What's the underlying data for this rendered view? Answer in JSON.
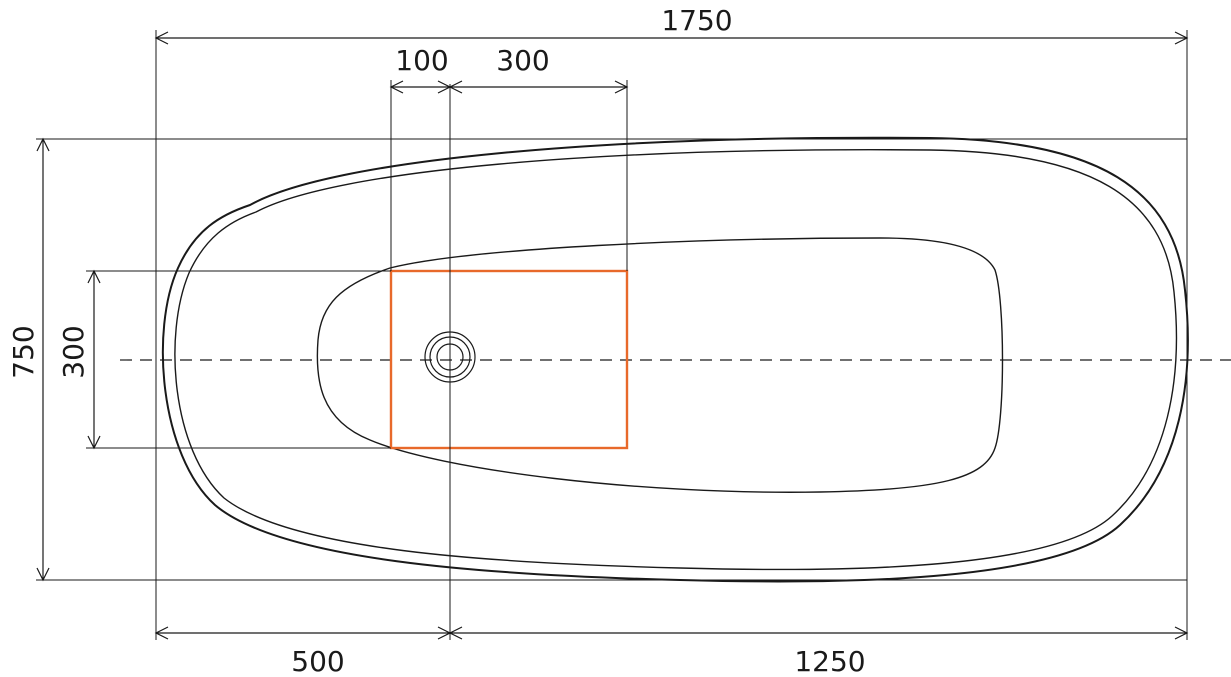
{
  "dimensions": {
    "total_length": "1750",
    "total_width": "750",
    "drain_zone_width": "300",
    "drain_offset": "100",
    "drain_zone_length": "300",
    "left_to_drain": "500",
    "drain_to_right": "1250"
  },
  "colors": {
    "highlight": "#e8692a",
    "line": "#1a1a1a"
  }
}
